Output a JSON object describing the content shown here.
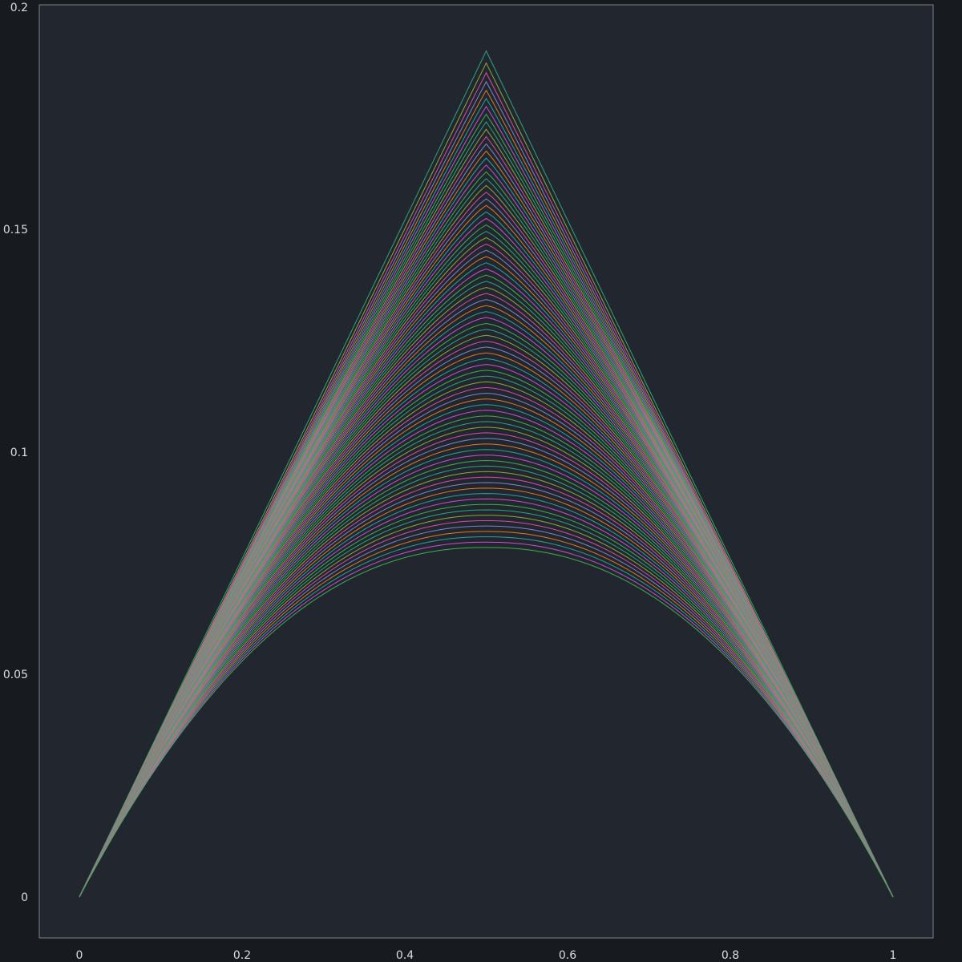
{
  "chart_data": {
    "type": "line",
    "title": "",
    "xlabel": "",
    "ylabel": "",
    "xlim": [
      -0.1,
      1.05
    ],
    "ylim": [
      -0.009,
      0.2
    ],
    "xticks": [
      "0",
      "0.2",
      "0.4",
      "0.6",
      "0.8",
      "1"
    ],
    "xtick_values": [
      0,
      0.2,
      0.4,
      0.6,
      0.8,
      1
    ],
    "yticks": [
      "0",
      "0.05",
      "0.1",
      "0.15",
      "0.2"
    ],
    "ytick_values": [
      0,
      0.05,
      0.1,
      0.15,
      0.2
    ],
    "grid": false,
    "legend": "none",
    "series_count": 80,
    "peak_x": 0.5,
    "peak_first": 0.19,
    "peak_last": 0.0785,
    "colors": [
      "#2ea57a",
      "#8fa63a",
      "#d94ca8",
      "#7a86c7",
      "#e07a1f",
      "#27a3a0",
      "#cc4fd1",
      "#3fae4f"
    ],
    "background": "#22262e",
    "frame_color": "#7c8087"
  }
}
